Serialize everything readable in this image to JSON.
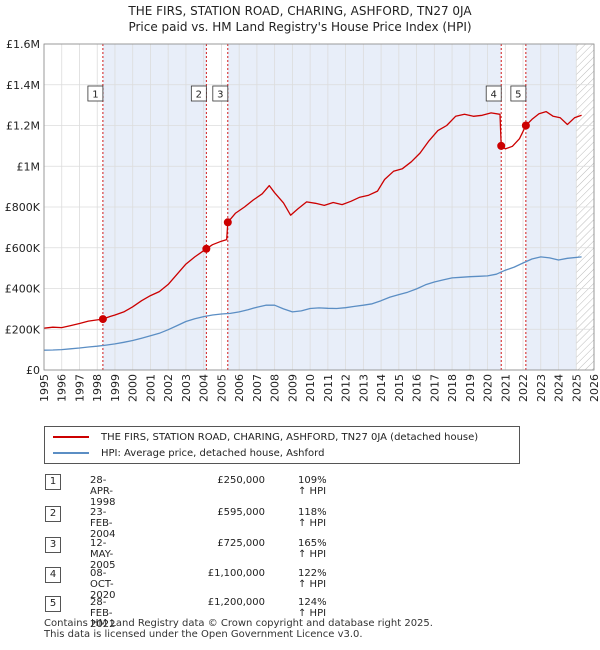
{
  "title_line1": "THE FIRS, STATION ROAD, CHARING, ASHFORD, TN27 0JA",
  "title_line2": "Price paid vs. HM Land Registry's House Price Index (HPI)",
  "colors": {
    "property": "#cc0000",
    "hpi": "#5b8ec4",
    "shade": "#e8eef9",
    "grid": "#dcdcdc",
    "vline": "#cc0000"
  },
  "legend": {
    "property_label": "THE FIRS, STATION ROAD, CHARING, ASHFORD, TN27 0JA (detached house)",
    "hpi_label": "HPI: Average price, detached house, Ashford"
  },
  "sales": [
    {
      "num": "1",
      "date": "28-APR-1998",
      "price": "£250,000",
      "hpi": "109% ↑ HPI"
    },
    {
      "num": "2",
      "date": "23-FEB-2004",
      "price": "£595,000",
      "hpi": "118% ↑ HPI"
    },
    {
      "num": "3",
      "date": "12-MAY-2005",
      "price": "£725,000",
      "hpi": "165% ↑ HPI"
    },
    {
      "num": "4",
      "date": "08-OCT-2020",
      "price": "£1,100,000",
      "hpi": "122% ↑ HPI"
    },
    {
      "num": "5",
      "date": "28-FEB-2022",
      "price": "£1,200,000",
      "hpi": "124% ↑ HPI"
    }
  ],
  "footer_line1": "Contains HM Land Registry data © Crown copyright and database right 2025.",
  "footer_line2": "This data is licensed under the Open Government Licence v3.0.",
  "chart_data": {
    "type": "line",
    "title": "THE FIRS, STATION ROAD, CHARING, ASHFORD, TN27 0JA",
    "subtitle": "Price paid vs. HM Land Registry's House Price Index (HPI)",
    "xlabel": "",
    "ylabel": "",
    "xlim": [
      1995,
      2026
    ],
    "ylim": [
      0,
      1600000
    ],
    "y_ticks": [
      0,
      200000,
      400000,
      600000,
      800000,
      1000000,
      1200000,
      1400000,
      1600000
    ],
    "y_tick_labels": [
      "£0",
      "£200K",
      "£400K",
      "£600K",
      "£800K",
      "£1M",
      "£1.2M",
      "£1.4M",
      "£1.6M"
    ],
    "x_ticks": [
      1995,
      1996,
      1997,
      1998,
      1999,
      2000,
      2001,
      2002,
      2003,
      2004,
      2005,
      2006,
      2007,
      2008,
      2009,
      2010,
      2011,
      2012,
      2013,
      2014,
      2015,
      2016,
      2017,
      2018,
      2019,
      2020,
      2021,
      2022,
      2023,
      2024,
      2025,
      2026
    ],
    "grid": true,
    "shaded_ranges": [
      [
        1998.32,
        2004.15
      ],
      [
        2005.36,
        2020.77
      ],
      [
        2022.16,
        2025.0
      ]
    ],
    "forecast_hatch_from": 2025.0,
    "series": [
      {
        "name": "THE FIRS, STATION ROAD, CHARING, ASHFORD, TN27 0JA (detached house)",
        "color": "#cc0000",
        "points": [
          [
            1995.0,
            205000
          ],
          [
            1995.5,
            210000
          ],
          [
            1996.0,
            208000
          ],
          [
            1996.5,
            218000
          ],
          [
            1997.0,
            228000
          ],
          [
            1997.5,
            240000
          ],
          [
            1998.0,
            246000
          ],
          [
            1998.32,
            250000
          ],
          [
            1998.7,
            262000
          ],
          [
            1999.0,
            270000
          ],
          [
            1999.5,
            285000
          ],
          [
            2000.0,
            310000
          ],
          [
            2000.5,
            340000
          ],
          [
            2001.0,
            365000
          ],
          [
            2001.5,
            385000
          ],
          [
            2002.0,
            420000
          ],
          [
            2002.5,
            470000
          ],
          [
            2003.0,
            520000
          ],
          [
            2003.5,
            555000
          ],
          [
            2004.15,
            595000
          ],
          [
            2004.5,
            615000
          ],
          [
            2005.0,
            632000
          ],
          [
            2005.3,
            640000
          ],
          [
            2005.36,
            725000
          ],
          [
            2005.8,
            770000
          ],
          [
            2006.3,
            800000
          ],
          [
            2006.8,
            835000
          ],
          [
            2007.3,
            865000
          ],
          [
            2007.7,
            905000
          ],
          [
            2008.0,
            870000
          ],
          [
            2008.5,
            820000
          ],
          [
            2008.9,
            760000
          ],
          [
            2009.3,
            790000
          ],
          [
            2009.8,
            825000
          ],
          [
            2010.3,
            818000
          ],
          [
            2010.8,
            808000
          ],
          [
            2011.3,
            822000
          ],
          [
            2011.8,
            812000
          ],
          [
            2012.3,
            828000
          ],
          [
            2012.8,
            848000
          ],
          [
            2013.3,
            858000
          ],
          [
            2013.8,
            878000
          ],
          [
            2014.2,
            935000
          ],
          [
            2014.7,
            975000
          ],
          [
            2015.2,
            988000
          ],
          [
            2015.7,
            1022000
          ],
          [
            2016.2,
            1065000
          ],
          [
            2016.7,
            1125000
          ],
          [
            2017.2,
            1175000
          ],
          [
            2017.7,
            1200000
          ],
          [
            2018.2,
            1245000
          ],
          [
            2018.7,
            1255000
          ],
          [
            2019.2,
            1245000
          ],
          [
            2019.7,
            1250000
          ],
          [
            2020.2,
            1262000
          ],
          [
            2020.7,
            1255000
          ],
          [
            2020.77,
            1100000
          ],
          [
            2021.0,
            1085000
          ],
          [
            2021.4,
            1098000
          ],
          [
            2021.8,
            1135000
          ],
          [
            2022.16,
            1200000
          ],
          [
            2022.5,
            1230000
          ],
          [
            2022.9,
            1258000
          ],
          [
            2023.3,
            1268000
          ],
          [
            2023.7,
            1245000
          ],
          [
            2024.1,
            1238000
          ],
          [
            2024.5,
            1205000
          ],
          [
            2024.9,
            1238000
          ],
          [
            2025.3,
            1250000
          ]
        ]
      },
      {
        "name": "HPI: Average price, detached house, Ashford",
        "color": "#5b8ec4",
        "points": [
          [
            1995.0,
            97000
          ],
          [
            1995.5,
            98000
          ],
          [
            1996.0,
            100000
          ],
          [
            1996.5,
            104000
          ],
          [
            1997.0,
            108000
          ],
          [
            1997.5,
            113000
          ],
          [
            1998.0,
            117000
          ],
          [
            1998.5,
            122000
          ],
          [
            1999.0,
            128000
          ],
          [
            1999.5,
            136000
          ],
          [
            2000.0,
            145000
          ],
          [
            2000.5,
            156000
          ],
          [
            2001.0,
            168000
          ],
          [
            2001.5,
            180000
          ],
          [
            2002.0,
            198000
          ],
          [
            2002.5,
            218000
          ],
          [
            2003.0,
            238000
          ],
          [
            2003.5,
            252000
          ],
          [
            2004.0,
            262000
          ],
          [
            2004.5,
            270000
          ],
          [
            2005.0,
            275000
          ],
          [
            2005.5,
            278000
          ],
          [
            2006.0,
            285000
          ],
          [
            2006.5,
            296000
          ],
          [
            2007.0,
            308000
          ],
          [
            2007.5,
            318000
          ],
          [
            2008.0,
            318000
          ],
          [
            2008.5,
            300000
          ],
          [
            2009.0,
            285000
          ],
          [
            2009.5,
            290000
          ],
          [
            2010.0,
            302000
          ],
          [
            2010.5,
            305000
          ],
          [
            2011.0,
            303000
          ],
          [
            2011.5,
            302000
          ],
          [
            2012.0,
            306000
          ],
          [
            2012.5,
            312000
          ],
          [
            2013.0,
            318000
          ],
          [
            2013.5,
            325000
          ],
          [
            2014.0,
            340000
          ],
          [
            2014.5,
            358000
          ],
          [
            2015.0,
            370000
          ],
          [
            2015.5,
            382000
          ],
          [
            2016.0,
            398000
          ],
          [
            2016.5,
            418000
          ],
          [
            2017.0,
            432000
          ],
          [
            2017.5,
            442000
          ],
          [
            2018.0,
            452000
          ],
          [
            2018.5,
            455000
          ],
          [
            2019.0,
            458000
          ],
          [
            2019.5,
            460000
          ],
          [
            2020.0,
            462000
          ],
          [
            2020.5,
            470000
          ],
          [
            2021.0,
            490000
          ],
          [
            2021.5,
            505000
          ],
          [
            2022.0,
            525000
          ],
          [
            2022.5,
            545000
          ],
          [
            2023.0,
            555000
          ],
          [
            2023.5,
            550000
          ],
          [
            2024.0,
            540000
          ],
          [
            2024.5,
            548000
          ],
          [
            2025.3,
            555000
          ]
        ]
      }
    ],
    "markers": [
      {
        "label": "1",
        "x": 1998.32,
        "y": 250000
      },
      {
        "label": "2",
        "x": 2004.15,
        "y": 595000
      },
      {
        "label": "3",
        "x": 2005.36,
        "y": 725000
      },
      {
        "label": "4",
        "x": 2020.77,
        "y": 1100000
      },
      {
        "label": "5",
        "x": 2022.16,
        "y": 1200000
      }
    ]
  }
}
